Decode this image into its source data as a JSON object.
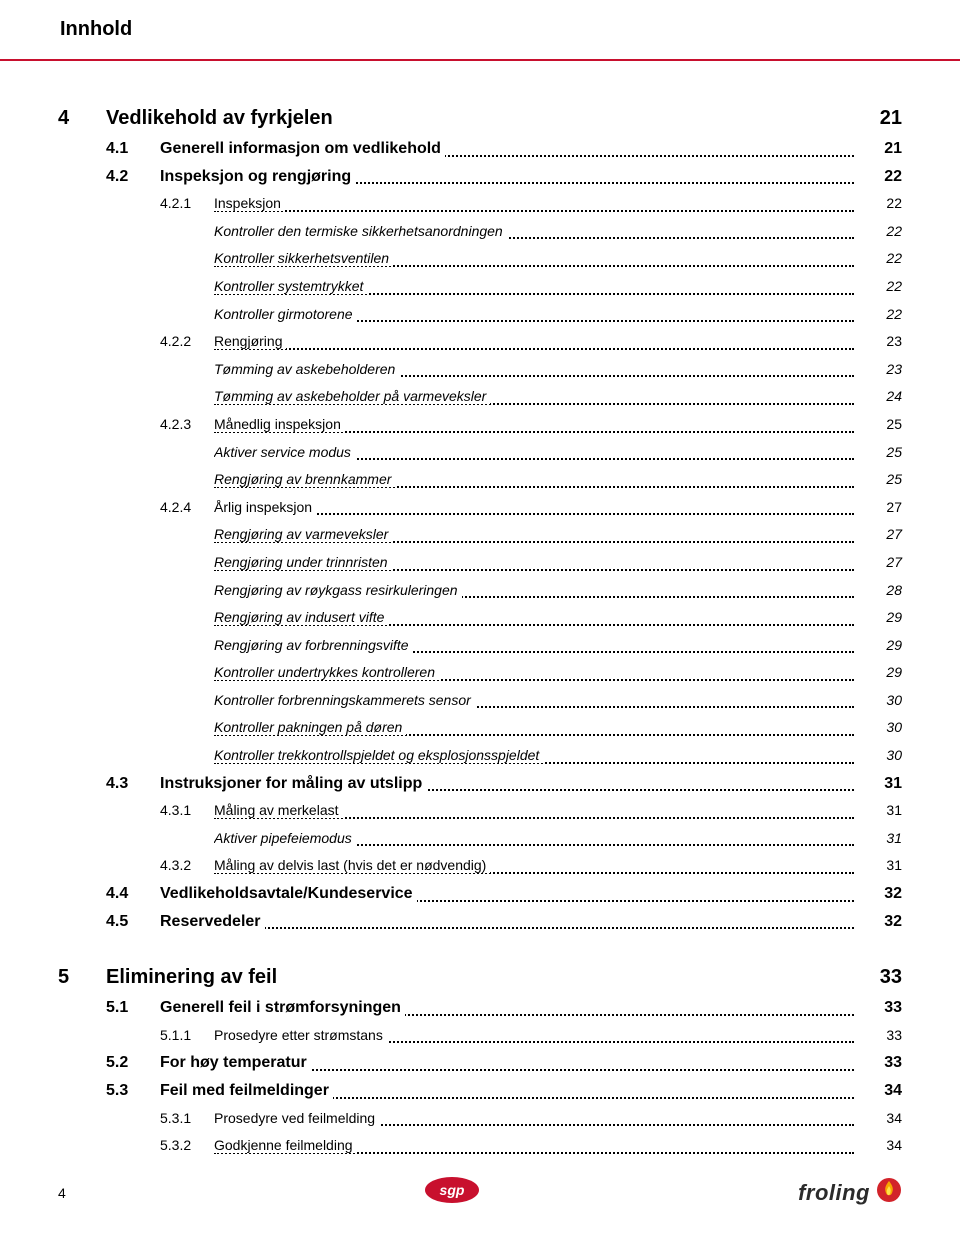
{
  "colors": {
    "accent": "#c8102e",
    "text": "#000000",
    "froling_red": "#d2232a",
    "froling_grey": "#2b2b2b"
  },
  "header": {
    "title": "Innhold"
  },
  "toc": [
    {
      "level": 1,
      "num": "4",
      "title": "Vedlikehold av fyrkjelen",
      "page": "21"
    },
    {
      "level": 2,
      "num": "4.1",
      "title": "Generell informasjon om vedlikehold",
      "page": "21"
    },
    {
      "level": 2,
      "num": "4.2",
      "title": "Inspeksjon og rengjøring",
      "page": "22"
    },
    {
      "level": 3,
      "num": "4.2.1",
      "title": "Inspeksjon",
      "page": "22"
    },
    {
      "level": 4,
      "num": "",
      "title": "Kontroller den termiske sikkerhetsanordningen",
      "page": "22"
    },
    {
      "level": 4,
      "num": "",
      "title": "Kontroller sikkerhetsventilen",
      "page": "22"
    },
    {
      "level": 4,
      "num": "",
      "title": "Kontroller systemtrykket",
      "page": "22"
    },
    {
      "level": 4,
      "num": "",
      "title": "Kontroller girmotorene",
      "page": "22"
    },
    {
      "level": 3,
      "num": "4.2.2",
      "title": "Rengjøring",
      "page": "23"
    },
    {
      "level": 4,
      "num": "",
      "title": "Tømming av askebeholderen",
      "page": "23"
    },
    {
      "level": 4,
      "num": "",
      "title": "Tømming av askebeholder på varmeveksler",
      "page": "24"
    },
    {
      "level": 3,
      "num": "4.2.3",
      "title": "Månedlig inspeksjon",
      "page": "25"
    },
    {
      "level": 4,
      "num": "",
      "title": "Aktiver service modus",
      "page": "25"
    },
    {
      "level": 4,
      "num": "",
      "title": "Rengjøring av brennkammer",
      "page": "25"
    },
    {
      "level": 3,
      "num": "4.2.4",
      "title": "Årlig inspeksjon",
      "page": "27"
    },
    {
      "level": 4,
      "num": "",
      "title": "Rengjøring av varmeveksler",
      "page": "27"
    },
    {
      "level": 4,
      "num": "",
      "title": "Rengjøring under trinnristen",
      "page": "27"
    },
    {
      "level": 4,
      "num": "",
      "title": "Rengjøring av røykgass resirkuleringen",
      "page": "28"
    },
    {
      "level": 4,
      "num": "",
      "title": "Rengjøring av indusert vifte",
      "page": "29"
    },
    {
      "level": 4,
      "num": "",
      "title": "Rengjøring av forbrenningsvifte",
      "page": "29"
    },
    {
      "level": 4,
      "num": "",
      "title": "Kontroller undertrykkes kontrolleren",
      "page": "29"
    },
    {
      "level": 4,
      "num": "",
      "title": "Kontroller forbrenningskammerets sensor",
      "page": "30"
    },
    {
      "level": 4,
      "num": "",
      "title": "Kontroller pakningen på døren",
      "page": "30"
    },
    {
      "level": 4,
      "num": "",
      "title": "Kontroller trekkontrollspjeldet og eksplosjonsspjeldet",
      "page": "30"
    },
    {
      "level": 2,
      "num": "4.3",
      "title": "Instruksjoner for måling av utslipp",
      "page": "31"
    },
    {
      "level": 3,
      "num": "4.3.1",
      "title": "Måling av merkelast",
      "page": "31"
    },
    {
      "level": 4,
      "num": "",
      "title": "Aktiver pipefeiemodus",
      "page": "31"
    },
    {
      "level": 3,
      "num": "4.3.2",
      "title": "Måling av delvis last (hvis det er nødvendig)",
      "page": "31"
    },
    {
      "level": 2,
      "num": "4.4",
      "title": "Vedlikeholdsavtale/Kundeservice",
      "page": "32"
    },
    {
      "level": 2,
      "num": "4.5",
      "title": "Reservedeler",
      "page": "32"
    },
    {
      "level": 0,
      "gap": true
    },
    {
      "level": 1,
      "num": "5",
      "title": "Eliminering av feil",
      "page": "33"
    },
    {
      "level": 2,
      "num": "5.1",
      "title": "Generell feil i strømforsyningen",
      "page": "33"
    },
    {
      "level": 3,
      "num": "5.1.1",
      "title": "Prosedyre etter strømstans",
      "page": "33"
    },
    {
      "level": 2,
      "num": "5.2",
      "title": "For høy temperatur",
      "page": "33"
    },
    {
      "level": 2,
      "num": "5.3",
      "title": "Feil med feilmeldinger",
      "page": "34"
    },
    {
      "level": 3,
      "num": "5.3.1",
      "title": "Prosedyre ved feilmelding",
      "page": "34"
    },
    {
      "level": 3,
      "num": "5.3.2",
      "title": "Godkjenne feilmelding",
      "page": "34"
    }
  ],
  "footer": {
    "page_number": "4",
    "logo_left_name": "sgp",
    "logo_right_name": "froling"
  }
}
